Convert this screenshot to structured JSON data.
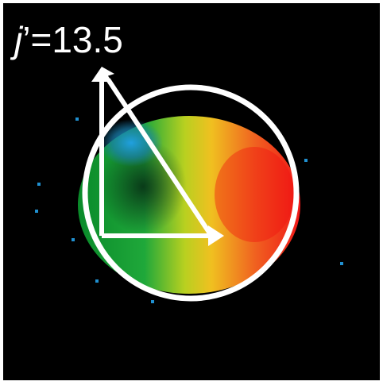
{
  "label": {
    "variable": "j",
    "rest": "’=13.5"
  }
}
